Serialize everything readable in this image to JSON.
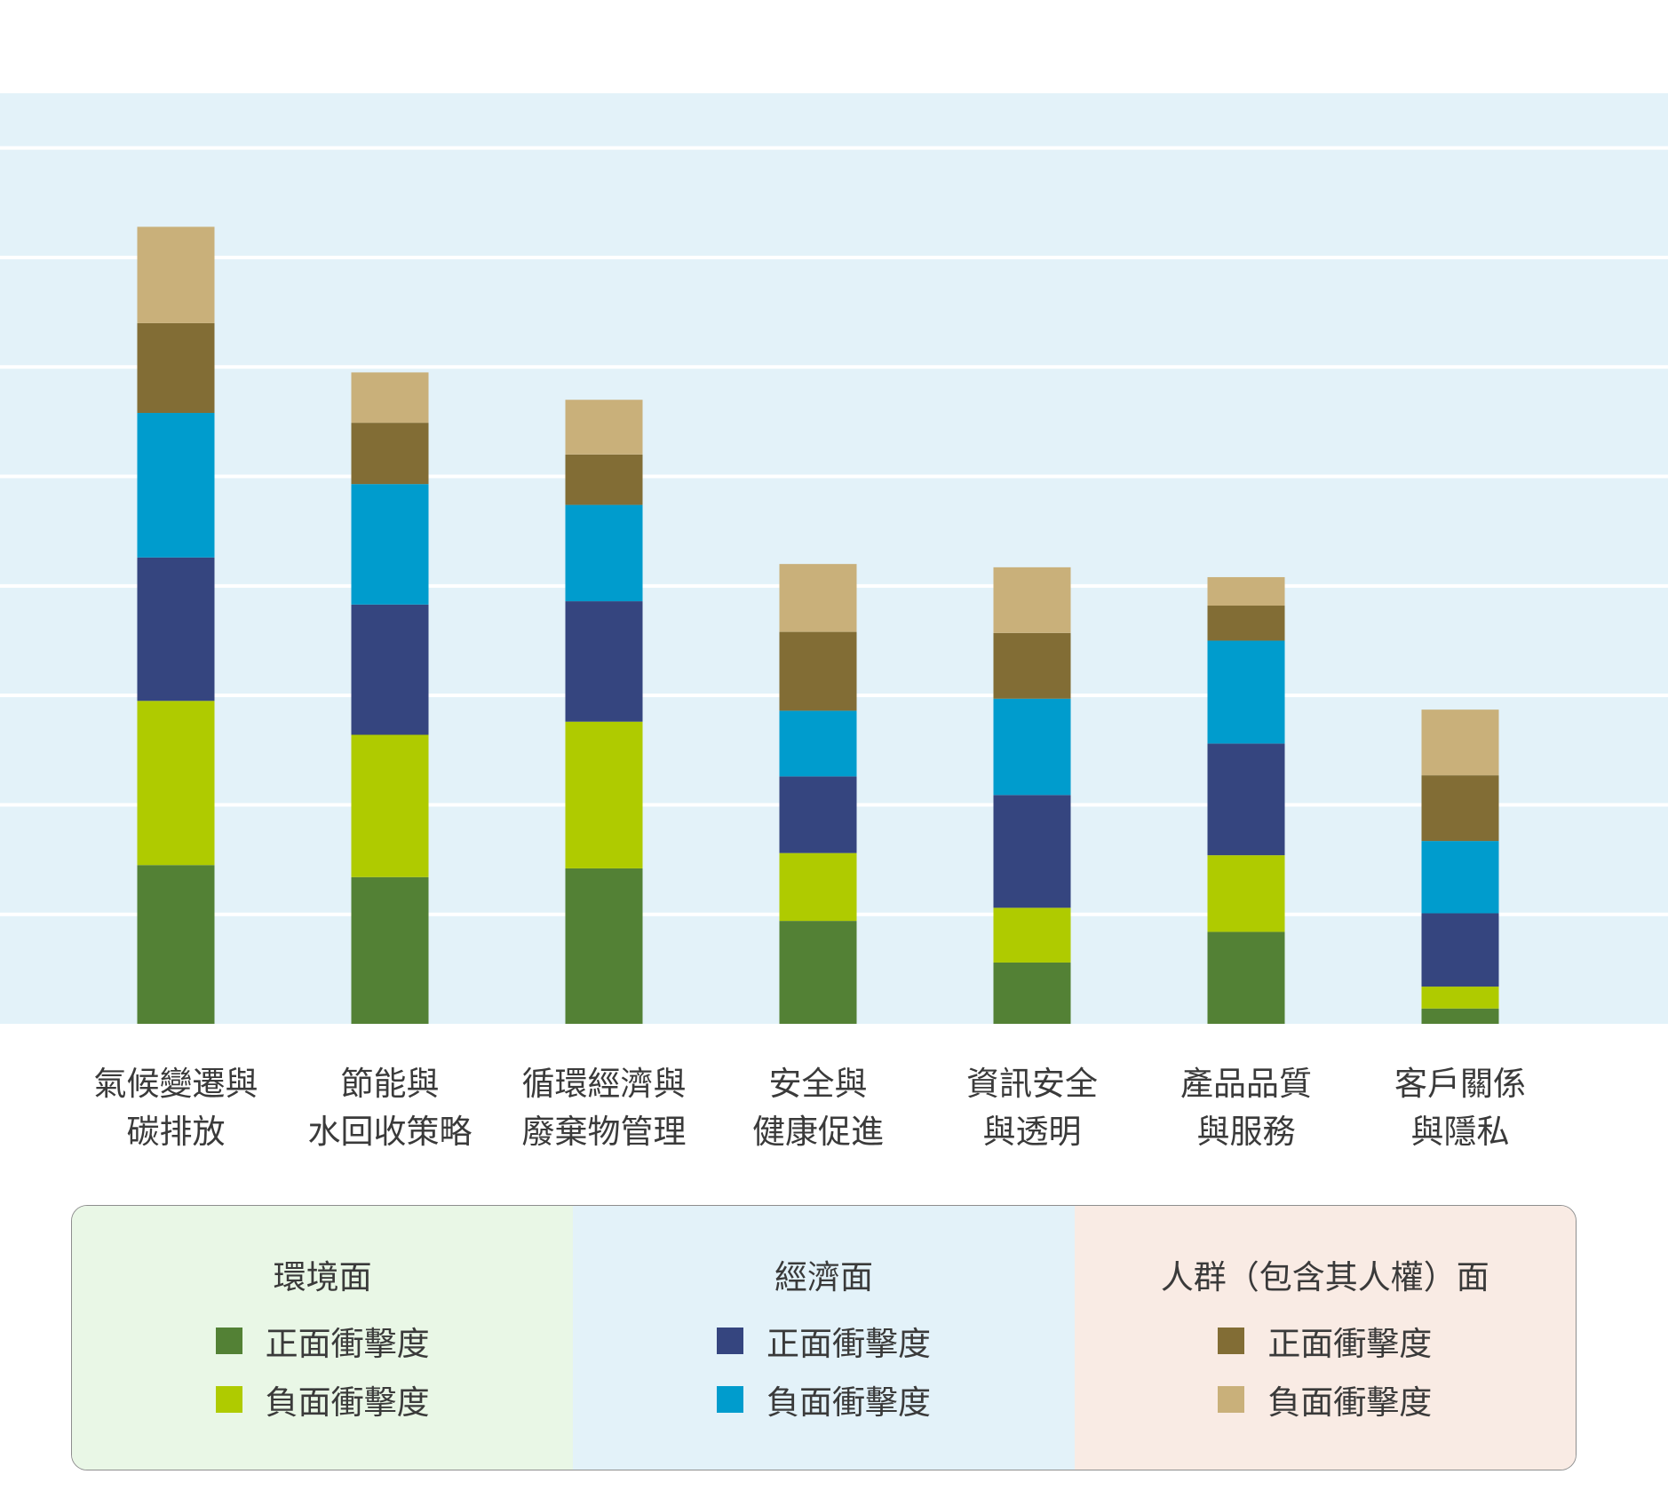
{
  "chart_data": {
    "type": "bar",
    "stacked": true,
    "categories": [
      [
        "氣候變遷與",
        "碳排放"
      ],
      [
        "節能與",
        "水回收策略"
      ],
      [
        "循環經濟與",
        "廢棄物管理"
      ],
      [
        "安全與",
        "健康促進"
      ],
      [
        "資訊安全",
        "與透明"
      ],
      [
        "產品品質",
        "與服務"
      ],
      [
        "客戶關係",
        "與隱私"
      ]
    ],
    "series": [
      {
        "name": "正面衝擊度",
        "group": "環境面",
        "color": "#538135",
        "values": [
          1.45,
          1.34,
          1.42,
          0.94,
          0.56,
          0.84,
          0.14
        ]
      },
      {
        "name": "負面衝擊度",
        "group": "環境面",
        "color": "#afcb00",
        "values": [
          1.5,
          1.3,
          1.34,
          0.62,
          0.5,
          0.7,
          0.2
        ]
      },
      {
        "name": "正面衝擊度",
        "group": "經濟面",
        "color": "#35457f",
        "values": [
          1.31,
          1.19,
          1.1,
          0.7,
          1.03,
          1.02,
          0.67
        ]
      },
      {
        "name": "負面衝擊度",
        "group": "經濟面",
        "color": "#009ccd",
        "values": [
          1.32,
          1.1,
          0.88,
          0.6,
          0.88,
          0.94,
          0.66
        ]
      },
      {
        "name": "正面衝擊度",
        "group": "人群（包含其人權）面",
        "color": "#826d35",
        "values": [
          0.82,
          0.56,
          0.46,
          0.72,
          0.6,
          0.32,
          0.6
        ]
      },
      {
        "name": "負面衝擊度",
        "group": "人群（包含其人權）面",
        "color": "#c9b07a",
        "values": [
          0.88,
          0.46,
          0.5,
          0.62,
          0.6,
          0.26,
          0.6
        ]
      }
    ],
    "ylim": [
      0,
      8
    ],
    "grid": true,
    "legend_position": "bottom"
  },
  "legend": {
    "groups": [
      {
        "title": "環境面",
        "bg": "#e9f7e6",
        "items": [
          {
            "label": "正面衝擊度",
            "color": "#538135"
          },
          {
            "label": "負面衝擊度",
            "color": "#afcb00"
          }
        ]
      },
      {
        "title": "經濟面",
        "bg": "#e3f2f9",
        "items": [
          {
            "label": "正面衝擊度",
            "color": "#35457f"
          },
          {
            "label": "負面衝擊度",
            "color": "#009ccd"
          }
        ]
      },
      {
        "title": "人群（包含其人權）面",
        "bg": "#f9ebe4",
        "items": [
          {
            "label": "正面衝擊度",
            "color": "#826d35"
          },
          {
            "label": "負面衝擊度",
            "color": "#c9b07a"
          }
        ]
      }
    ]
  },
  "colors": {
    "plot_bg": "#e3f2f9",
    "grid": "#ffffff"
  }
}
